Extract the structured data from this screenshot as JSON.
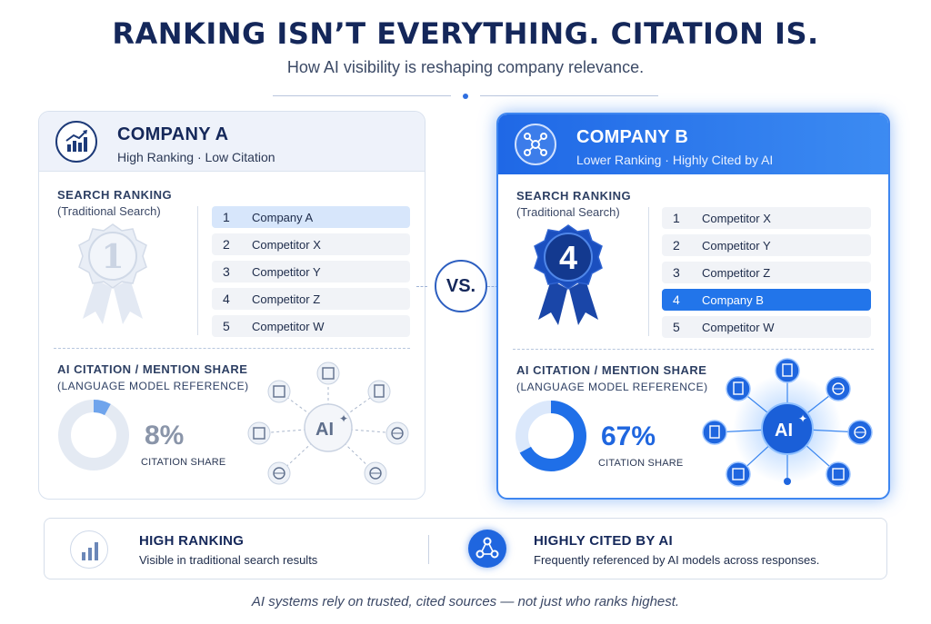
{
  "header": {
    "title": "RANKING ISN’T EVERYTHING. CITATION IS.",
    "subtitle": "How AI visibility is reshaping company relevance."
  },
  "company_a": {
    "name": "COMPANY A",
    "tagline": "High Ranking · Low Citation",
    "ranking_label": "SEARCH RANKING",
    "ranking_sub": "(Traditional Search)",
    "medal_number": "1",
    "ranking": [
      {
        "num": "1",
        "name": "Company A"
      },
      {
        "num": "2",
        "name": "Competitor X"
      },
      {
        "num": "3",
        "name": "Competitor Y"
      },
      {
        "num": "4",
        "name": "Competitor Z"
      },
      {
        "num": "5",
        "name": "Competitor W"
      }
    ],
    "citation_label": "AI CITATION / MENTION SHARE",
    "citation_sub": "(LANGUAGE MODEL REFERENCE)",
    "citation_percent": "8%",
    "citation_fraction": 0.08,
    "citation_caption": "CITATION SHARE",
    "ai_label": "AI"
  },
  "vs_label": "VS.",
  "company_b": {
    "name": "COMPANY B",
    "tagline": "Lower Ranking · Highly Cited by AI",
    "ranking_label": "SEARCH RANKING",
    "ranking_sub": "(Traditional Search)",
    "medal_number": "4",
    "ranking": [
      {
        "num": "1",
        "name": "Competitor X"
      },
      {
        "num": "2",
        "name": "Competitor Y"
      },
      {
        "num": "3",
        "name": "Competitor Z"
      },
      {
        "num": "4",
        "name": "Company B"
      },
      {
        "num": "5",
        "name": "Competitor W"
      }
    ],
    "citation_label": "AI CITATION / MENTION SHARE",
    "citation_sub": "(LANGUAGE MODEL REFERENCE)",
    "citation_percent": "67%",
    "citation_fraction": 0.67,
    "citation_caption": "CITATION SHARE",
    "ai_label": "AI"
  },
  "summary": {
    "left_title": "HIGH RANKING",
    "left_text": "Visible in traditional search results",
    "right_title": "HIGHLY CITED BY AI",
    "right_text": "Frequently referenced by AI models across responses."
  },
  "footer": "AI systems rely on trusted, cited sources — not just who ranks highest.",
  "colors": {
    "navy": "#14275a",
    "accent_blue": "#1f66df",
    "light_blue": "#d7e6fb",
    "muted_gray": "#8a95a9"
  }
}
